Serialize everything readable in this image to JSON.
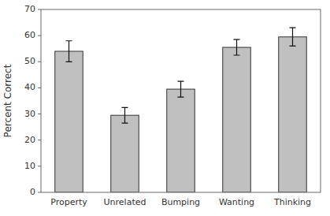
{
  "chart_data": {
    "type": "bar",
    "categories": [
      "Property",
      "Unrelated",
      "Bumping",
      "Wanting",
      "Thinking"
    ],
    "values": [
      54.0,
      29.5,
      39.5,
      55.5,
      59.5
    ],
    "errors": [
      4.0,
      3.0,
      3.0,
      3.0,
      3.5
    ],
    "color": "#C0C0C0",
    "ylabel": "Percent Correct",
    "ylim": [
      0,
      70
    ],
    "yticks": [
      0,
      10,
      20,
      30,
      40,
      50,
      60,
      70
    ]
  }
}
